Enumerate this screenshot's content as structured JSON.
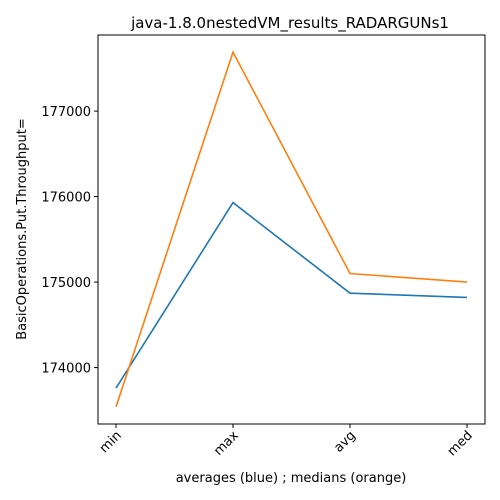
{
  "chart_data": {
    "type": "line",
    "title": "java-1.8.0nestedVM_results_RADARGUNs1",
    "xlabel": "averages (blue) ; medians (orange)",
    "ylabel": "BasicOperations.Put.Throughput=",
    "categories": [
      "min",
      "max",
      "avg",
      "med"
    ],
    "yticks": [
      174000,
      175000,
      176000,
      177000
    ],
    "ylim": [
      173340,
      177890
    ],
    "grid": false,
    "series": [
      {
        "color": "#1f77b4",
        "values": [
          173760,
          175930,
          174870,
          174820
        ]
      },
      {
        "color": "#ff7f0e",
        "values": [
          173540,
          177690,
          175100,
          175000
        ]
      }
    ]
  }
}
